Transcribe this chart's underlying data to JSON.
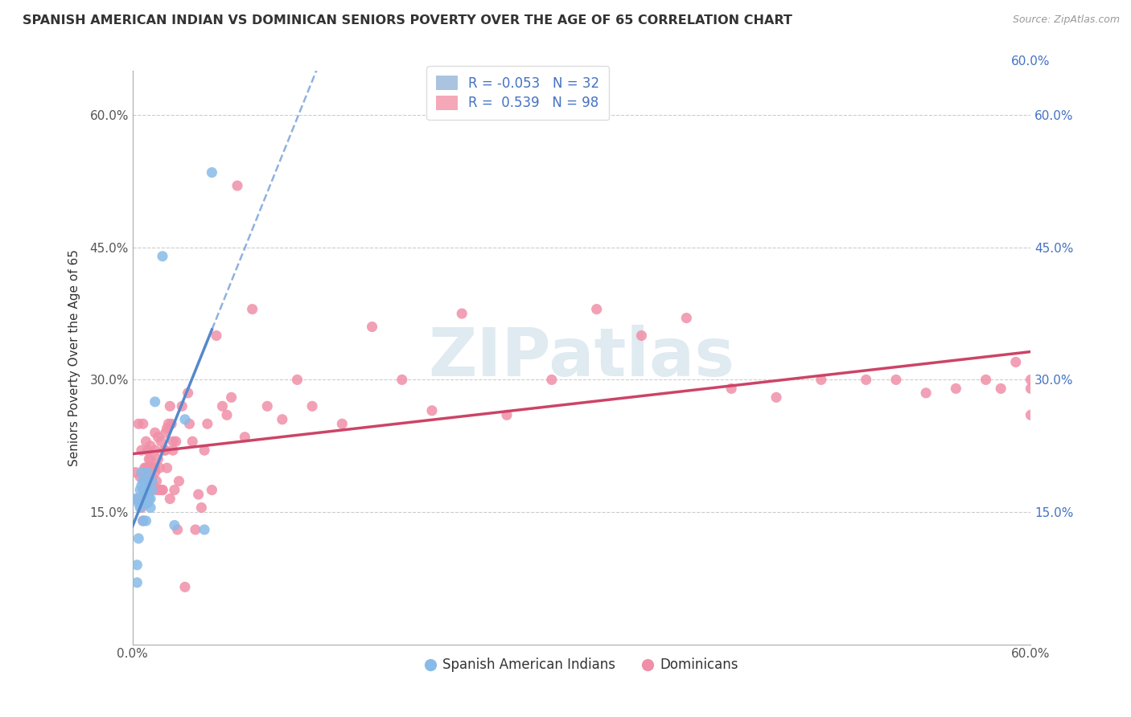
{
  "title": "SPANISH AMERICAN INDIAN VS DOMINICAN SENIORS POVERTY OVER THE AGE OF 65 CORRELATION CHART",
  "source": "Source: ZipAtlas.com",
  "ylabel": "Seniors Poverty Over the Age of 65",
  "ytick_labels_left": [
    "15.0%",
    "30.0%",
    "45.0%",
    "60.0%"
  ],
  "ytick_labels_right": [
    "15.0%",
    "30.0%",
    "45.0%",
    "60.0%"
  ],
  "ytick_values": [
    0.15,
    0.3,
    0.45,
    0.6
  ],
  "xtick_left_label": "0.0%",
  "xtick_right_label": "60.0%",
  "xlim": [
    0.0,
    0.6
  ],
  "ylim": [
    0.0,
    0.65
  ],
  "legend_labels": [
    "Spanish American Indians",
    "Dominicans"
  ],
  "r_blue": -0.053,
  "n_blue": 32,
  "r_pink": 0.539,
  "n_pink": 98,
  "blue_patch_color": "#aac4e0",
  "pink_patch_color": "#f4a8b8",
  "blue_line_color": "#5588cc",
  "pink_line_color": "#cc4466",
  "blue_scatter_color": "#88bbe8",
  "pink_scatter_color": "#f090a8",
  "watermark_text": "ZIPatlas",
  "watermark_color": "#dce8f0",
  "blue_points_x": [
    0.002,
    0.003,
    0.003,
    0.004,
    0.004,
    0.005,
    0.005,
    0.005,
    0.006,
    0.006,
    0.007,
    0.007,
    0.007,
    0.008,
    0.008,
    0.008,
    0.009,
    0.009,
    0.01,
    0.01,
    0.01,
    0.011,
    0.012,
    0.012,
    0.013,
    0.013,
    0.015,
    0.02,
    0.028,
    0.035,
    0.048,
    0.053
  ],
  "blue_points_y": [
    0.165,
    0.09,
    0.07,
    0.12,
    0.16,
    0.175,
    0.165,
    0.155,
    0.195,
    0.18,
    0.185,
    0.175,
    0.14,
    0.185,
    0.175,
    0.16,
    0.14,
    0.17,
    0.195,
    0.175,
    0.16,
    0.165,
    0.165,
    0.155,
    0.185,
    0.175,
    0.275,
    0.44,
    0.135,
    0.255,
    0.13,
    0.535
  ],
  "pink_points_x": [
    0.002,
    0.003,
    0.004,
    0.005,
    0.006,
    0.006,
    0.007,
    0.007,
    0.008,
    0.008,
    0.008,
    0.009,
    0.009,
    0.01,
    0.01,
    0.01,
    0.011,
    0.011,
    0.012,
    0.012,
    0.012,
    0.013,
    0.013,
    0.014,
    0.014,
    0.015,
    0.015,
    0.015,
    0.015,
    0.016,
    0.016,
    0.017,
    0.017,
    0.018,
    0.018,
    0.019,
    0.02,
    0.02,
    0.021,
    0.022,
    0.022,
    0.023,
    0.023,
    0.024,
    0.025,
    0.025,
    0.026,
    0.027,
    0.027,
    0.028,
    0.029,
    0.03,
    0.031,
    0.033,
    0.035,
    0.037,
    0.038,
    0.04,
    0.042,
    0.044,
    0.046,
    0.048,
    0.05,
    0.053,
    0.056,
    0.06,
    0.063,
    0.066,
    0.07,
    0.075,
    0.08,
    0.09,
    0.1,
    0.11,
    0.12,
    0.14,
    0.16,
    0.18,
    0.2,
    0.22,
    0.25,
    0.28,
    0.31,
    0.34,
    0.37,
    0.4,
    0.43,
    0.46,
    0.49,
    0.51,
    0.53,
    0.55,
    0.57,
    0.58,
    0.59,
    0.6,
    0.6,
    0.6
  ],
  "pink_points_y": [
    0.195,
    0.165,
    0.25,
    0.19,
    0.155,
    0.22,
    0.14,
    0.25,
    0.2,
    0.19,
    0.17,
    0.2,
    0.23,
    0.19,
    0.22,
    0.2,
    0.185,
    0.21,
    0.2,
    0.21,
    0.225,
    0.175,
    0.19,
    0.2,
    0.18,
    0.22,
    0.24,
    0.2,
    0.195,
    0.185,
    0.175,
    0.21,
    0.235,
    0.175,
    0.2,
    0.23,
    0.175,
    0.175,
    0.22,
    0.24,
    0.22,
    0.2,
    0.245,
    0.25,
    0.27,
    0.165,
    0.25,
    0.23,
    0.22,
    0.175,
    0.23,
    0.13,
    0.185,
    0.27,
    0.065,
    0.285,
    0.25,
    0.23,
    0.13,
    0.17,
    0.155,
    0.22,
    0.25,
    0.175,
    0.35,
    0.27,
    0.26,
    0.28,
    0.52,
    0.235,
    0.38,
    0.27,
    0.255,
    0.3,
    0.27,
    0.25,
    0.36,
    0.3,
    0.265,
    0.375,
    0.26,
    0.3,
    0.38,
    0.35,
    0.37,
    0.29,
    0.28,
    0.3,
    0.3,
    0.3,
    0.285,
    0.29,
    0.3,
    0.29,
    0.32,
    0.26,
    0.3,
    0.29
  ]
}
